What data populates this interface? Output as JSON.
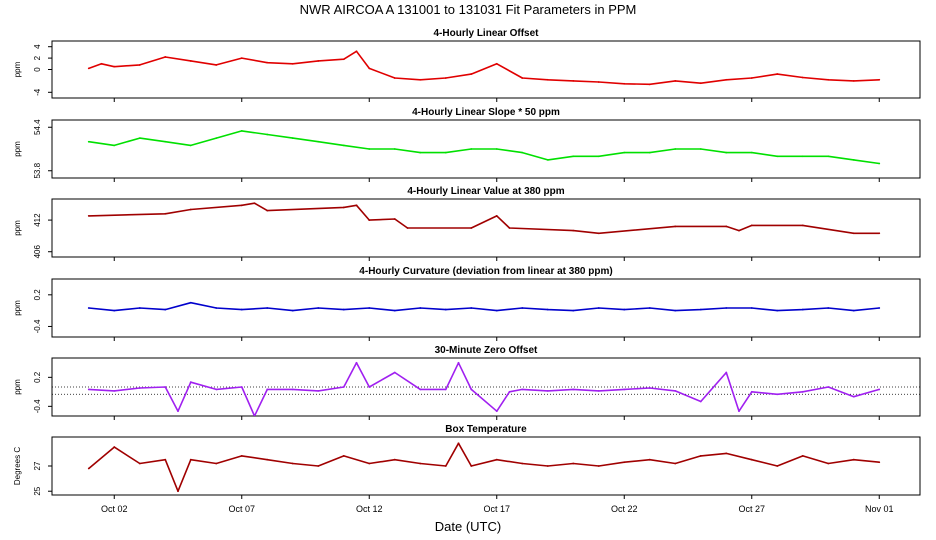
{
  "title": "NWR   AIRCOA A   131001 to 131031   Fit Parameters in PPM",
  "xlabel": "Date (UTC)",
  "x_range": [
    "2013-09-30T12:00",
    "2013-11-01T12:00"
  ],
  "x_ticks": [
    {
      "label": "Oct 02",
      "date": "2013-10-02"
    },
    {
      "label": "Oct 07",
      "date": "2013-10-07"
    },
    {
      "label": "Oct 12",
      "date": "2013-10-12"
    },
    {
      "label": "Oct 17",
      "date": "2013-10-17"
    },
    {
      "label": "Oct 22",
      "date": "2013-10-22"
    },
    {
      "label": "Oct 27",
      "date": "2013-10-27"
    },
    {
      "label": "Nov 01",
      "date": "2013-11-01"
    }
  ],
  "chart_data": [
    {
      "type": "line",
      "title": "4-Hourly Linear Offset",
      "ylabel": "ppm",
      "ylim": [
        -5,
        5
      ],
      "yticks": [
        "-4",
        "0",
        "2",
        "4"
      ],
      "ytick_values": [
        -4,
        0,
        2,
        4
      ],
      "color": "#e00000",
      "x": [
        "2013-10-01",
        "2013-10-01T12:00",
        "2013-10-02",
        "2013-10-03",
        "2013-10-04",
        "2013-10-05",
        "2013-10-06",
        "2013-10-07",
        "2013-10-08",
        "2013-10-09",
        "2013-10-10",
        "2013-10-11",
        "2013-10-11T12:00",
        "2013-10-12",
        "2013-10-13",
        "2013-10-14",
        "2013-10-15",
        "2013-10-16",
        "2013-10-17",
        "2013-10-18",
        "2013-10-19",
        "2013-10-20",
        "2013-10-21",
        "2013-10-22",
        "2013-10-23",
        "2013-10-24",
        "2013-10-25",
        "2013-10-26",
        "2013-10-27",
        "2013-10-28",
        "2013-10-29",
        "2013-10-30",
        "2013-10-31",
        "2013-11-01"
      ],
      "y": [
        0.2,
        1.0,
        0.5,
        0.8,
        2.2,
        1.5,
        0.8,
        2.0,
        1.2,
        1.0,
        1.5,
        1.8,
        3.2,
        0.2,
        -1.5,
        -1.8,
        -1.5,
        -0.8,
        1.0,
        -1.5,
        -1.8,
        -2.0,
        -2.2,
        -2.5,
        -2.6,
        -2.0,
        -2.4,
        -1.8,
        -1.5,
        -0.8,
        -1.4,
        -1.8,
        -2.0,
        -1.8
      ]
    },
    {
      "type": "line",
      "title": "4-Hourly Linear Slope * 50 ppm",
      "ylabel": "ppm",
      "ylim": [
        53.7,
        54.5
      ],
      "yticks": [
        "53.8",
        "54.4"
      ],
      "ytick_values": [
        53.8,
        54.4
      ],
      "color": "#00e000",
      "x": [
        "2013-10-01",
        "2013-10-02",
        "2013-10-03",
        "2013-10-04",
        "2013-10-05",
        "2013-10-06",
        "2013-10-07",
        "2013-10-08",
        "2013-10-09",
        "2013-10-10",
        "2013-10-11",
        "2013-10-12",
        "2013-10-13",
        "2013-10-14",
        "2013-10-15",
        "2013-10-16",
        "2013-10-17",
        "2013-10-18",
        "2013-10-19",
        "2013-10-20",
        "2013-10-21",
        "2013-10-22",
        "2013-10-23",
        "2013-10-24",
        "2013-10-25",
        "2013-10-26",
        "2013-10-27",
        "2013-10-28",
        "2013-10-29",
        "2013-10-30",
        "2013-10-31",
        "2013-11-01"
      ],
      "y": [
        54.2,
        54.15,
        54.25,
        54.2,
        54.15,
        54.25,
        54.35,
        54.3,
        54.25,
        54.2,
        54.15,
        54.1,
        54.1,
        54.05,
        54.05,
        54.1,
        54.1,
        54.05,
        53.95,
        54.0,
        54.0,
        54.05,
        54.05,
        54.1,
        54.1,
        54.05,
        54.05,
        54.0,
        54.0,
        54.0,
        53.95,
        53.9
      ]
    },
    {
      "type": "line",
      "title": "4-Hourly Linear Value at 380 ppm",
      "ylabel": "ppm",
      "ylim": [
        405,
        416
      ],
      "yticks": [
        "406",
        "412"
      ],
      "ytick_values": [
        406,
        412
      ],
      "color": "#a00000",
      "x": [
        "2013-10-01",
        "2013-10-04",
        "2013-10-05",
        "2013-10-07",
        "2013-10-07T12:00",
        "2013-10-08",
        "2013-10-11",
        "2013-10-11T12:00",
        "2013-10-12",
        "2013-10-13",
        "2013-10-13T12:00",
        "2013-10-16",
        "2013-10-17",
        "2013-10-17T12:00",
        "2013-10-20",
        "2013-10-21",
        "2013-10-24",
        "2013-10-26",
        "2013-10-26T12:00",
        "2013-10-27",
        "2013-10-29",
        "2013-10-31",
        "2013-11-01"
      ],
      "y": [
        412.8,
        413.2,
        414.0,
        414.8,
        415.2,
        413.8,
        414.4,
        414.8,
        412.0,
        412.2,
        410.5,
        410.5,
        412.8,
        410.5,
        410.0,
        409.5,
        410.8,
        410.8,
        410.0,
        411.0,
        411.0,
        409.5,
        409.5
      ]
    },
    {
      "type": "line",
      "title": "4-Hourly Curvature (deviation from linear at 380 ppm)",
      "ylabel": "ppm",
      "ylim": [
        -0.6,
        0.5
      ],
      "yticks": [
        "-0.4",
        "0.2"
      ],
      "ytick_values": [
        -0.4,
        0.2
      ],
      "color": "#0000cc",
      "x": [
        "2013-10-01",
        "2013-10-02",
        "2013-10-03",
        "2013-10-04",
        "2013-10-05",
        "2013-10-06",
        "2013-10-07",
        "2013-10-08",
        "2013-10-09",
        "2013-10-10",
        "2013-10-11",
        "2013-10-12",
        "2013-10-13",
        "2013-10-14",
        "2013-10-15",
        "2013-10-16",
        "2013-10-17",
        "2013-10-18",
        "2013-10-19",
        "2013-10-20",
        "2013-10-21",
        "2013-10-22",
        "2013-10-23",
        "2013-10-24",
        "2013-10-25",
        "2013-10-26",
        "2013-10-27",
        "2013-10-28",
        "2013-10-29",
        "2013-10-30",
        "2013-10-31",
        "2013-11-01"
      ],
      "y": [
        -0.05,
        -0.1,
        -0.05,
        -0.08,
        0.05,
        -0.05,
        -0.08,
        -0.05,
        -0.1,
        -0.05,
        -0.08,
        -0.05,
        -0.1,
        -0.05,
        -0.08,
        -0.05,
        -0.1,
        -0.05,
        -0.08,
        -0.1,
        -0.05,
        -0.08,
        -0.05,
        -0.1,
        -0.08,
        -0.05,
        -0.05,
        -0.1,
        -0.08,
        -0.05,
        -0.1,
        -0.05
      ]
    },
    {
      "type": "line",
      "title": "30-Minute Zero Offset",
      "ylabel": "ppm",
      "ylim": [
        -0.6,
        0.6
      ],
      "yticks": [
        "-0.4",
        "0.2"
      ],
      "ytick_values": [
        -0.4,
        0.2
      ],
      "color": "#a020f0",
      "ref_lines": [
        0.0,
        -0.15
      ],
      "x": [
        "2013-10-01",
        "2013-10-02",
        "2013-10-03",
        "2013-10-04",
        "2013-10-04T12:00",
        "2013-10-05",
        "2013-10-06",
        "2013-10-07",
        "2013-10-07T12:00",
        "2013-10-08",
        "2013-10-09",
        "2013-10-10",
        "2013-10-11",
        "2013-10-11T12:00",
        "2013-10-12",
        "2013-10-13",
        "2013-10-14",
        "2013-10-15",
        "2013-10-15T12:00",
        "2013-10-16",
        "2013-10-17",
        "2013-10-17T12:00",
        "2013-10-18",
        "2013-10-19",
        "2013-10-20",
        "2013-10-21",
        "2013-10-22",
        "2013-10-23",
        "2013-10-24",
        "2013-10-25",
        "2013-10-26",
        "2013-10-26T12:00",
        "2013-10-27",
        "2013-10-28",
        "2013-10-29",
        "2013-10-30",
        "2013-10-31",
        "2013-11-01"
      ],
      "y": [
        -0.05,
        -0.08,
        -0.02,
        0.0,
        -0.5,
        0.1,
        -0.05,
        0.0,
        -0.6,
        -0.05,
        -0.05,
        -0.08,
        0.0,
        0.5,
        0.0,
        0.3,
        -0.05,
        -0.05,
        0.5,
        -0.05,
        -0.5,
        -0.1,
        -0.05,
        -0.08,
        -0.05,
        -0.08,
        -0.05,
        -0.02,
        -0.08,
        -0.3,
        0.3,
        -0.5,
        -0.1,
        -0.15,
        -0.1,
        0.0,
        -0.2,
        -0.05
      ]
    },
    {
      "type": "line",
      "title": "Box Temperature",
      "ylabel": "Degrees C",
      "ylim": [
        24.7,
        29.3
      ],
      "yticks": [
        "25",
        "27"
      ],
      "ytick_values": [
        25,
        27
      ],
      "color": "#a00000",
      "x": [
        "2013-10-01",
        "2013-10-02",
        "2013-10-03",
        "2013-10-04",
        "2013-10-04T12:00",
        "2013-10-05",
        "2013-10-06",
        "2013-10-07",
        "2013-10-08",
        "2013-10-09",
        "2013-10-10",
        "2013-10-11",
        "2013-10-12",
        "2013-10-13",
        "2013-10-14",
        "2013-10-15",
        "2013-10-15T12:00",
        "2013-10-16",
        "2013-10-17",
        "2013-10-18",
        "2013-10-19",
        "2013-10-20",
        "2013-10-21",
        "2013-10-22",
        "2013-10-23",
        "2013-10-24",
        "2013-10-25",
        "2013-10-26",
        "2013-10-27",
        "2013-10-28",
        "2013-10-29",
        "2013-10-30",
        "2013-10-31",
        "2013-11-01"
      ],
      "y": [
        26.8,
        28.5,
        27.2,
        27.5,
        25.0,
        27.5,
        27.2,
        27.8,
        27.5,
        27.2,
        27.0,
        27.8,
        27.2,
        27.5,
        27.2,
        27.0,
        28.8,
        27.0,
        27.5,
        27.2,
        27.0,
        27.2,
        27.0,
        27.3,
        27.5,
        27.2,
        27.8,
        28.0,
        27.5,
        27.0,
        27.8,
        27.2,
        27.5,
        27.3
      ]
    }
  ]
}
